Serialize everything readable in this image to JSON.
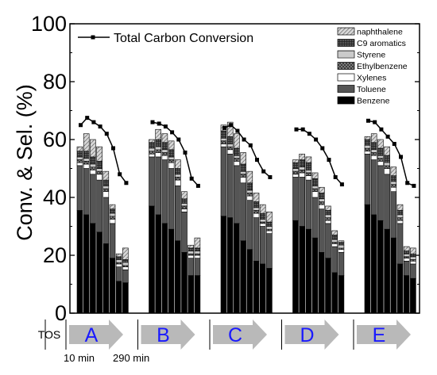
{
  "chart_data": {
    "type": "bar",
    "stacked": true,
    "ylabel": "Conv. & Sel. (%)",
    "ylim": [
      0,
      100
    ],
    "yticks": [
      0,
      20,
      40,
      60,
      80,
      100
    ],
    "catalysts": [
      "A",
      "B",
      "C",
      "D",
      "E"
    ],
    "tos_label": "TOS",
    "tos_start_label": "10 min",
    "tos_end_label": "290 min",
    "bars_per_catalyst": 8,
    "legend_position": "top-right",
    "line_legend": "Total Carbon Conversion",
    "series": [
      {
        "name": "Benzene",
        "key": "benzene",
        "color": "#000000",
        "values": [
          [
            35.5,
            34,
            31,
            28,
            24,
            19,
            11,
            10.5
          ],
          [
            37,
            34,
            31,
            29,
            25,
            21,
            13,
            13
          ],
          [
            33.5,
            33,
            31,
            25,
            22,
            18,
            17,
            15.5
          ],
          [
            32,
            30,
            29,
            26,
            21,
            19,
            14,
            13
          ],
          [
            37.5,
            34,
            32,
            29,
            26,
            17,
            13,
            12
          ]
        ]
      },
      {
        "name": "Toluene",
        "key": "toluene",
        "color": "#555555",
        "values": [
          [
            15.5,
            16,
            17,
            18,
            16,
            12,
            5,
            4.5
          ],
          [
            17,
            20,
            22,
            21,
            19,
            14,
            6,
            6
          ],
          [
            24,
            22,
            20,
            20,
            17,
            15,
            13,
            12
          ],
          [
            15,
            17,
            17,
            14,
            15,
            12,
            9,
            8
          ],
          [
            17.5,
            19,
            19,
            19,
            16,
            14,
            5,
            5
          ]
        ]
      },
      {
        "name": "Xylenes",
        "key": "xylenes",
        "color": "#ffffff",
        "values": [
          [
            1,
            1.5,
            1.5,
            2,
            2,
            1.5,
            1,
            1
          ],
          [
            1,
            1.5,
            1.5,
            2,
            2,
            1,
            1,
            1
          ],
          [
            1,
            1.5,
            1.5,
            2,
            1.5,
            1.5,
            1,
            1
          ],
          [
            1,
            1.5,
            1.5,
            2,
            1.5,
            1,
            1,
            1
          ],
          [
            1,
            1.5,
            1.5,
            2,
            1.5,
            1,
            1,
            1
          ]
        ]
      },
      {
        "name": "Ethylbenzene",
        "key": "ethylbenzene",
        "color": "#6a6a6a",
        "values": [
          [
            1,
            1,
            1,
            1,
            1,
            1,
            0.5,
            0.5
          ],
          [
            1,
            1,
            1,
            1,
            1,
            1,
            0.5,
            0.5
          ],
          [
            1,
            1,
            1,
            1,
            1,
            1,
            0.5,
            0.5
          ],
          [
            1,
            1,
            1,
            1,
            1,
            1,
            0.5,
            0.5
          ],
          [
            1,
            1,
            1,
            1,
            1,
            1,
            0.5,
            0.5
          ]
        ]
      },
      {
        "name": "Styrene",
        "key": "styrene",
        "color": "#ffffff",
        "values": [
          [
            1,
            1,
            1,
            1,
            1,
            1,
            1,
            1
          ],
          [
            1,
            1,
            1,
            1,
            1,
            1,
            1,
            1
          ],
          [
            1,
            1,
            1,
            1,
            1,
            1,
            1,
            1
          ],
          [
            1,
            1,
            1,
            1,
            1,
            1,
            1,
            1
          ],
          [
            1,
            1,
            1,
            1,
            1,
            1,
            1,
            1
          ]
        ]
      },
      {
        "name": "C9 aromatics",
        "key": "c9",
        "color": "#444444",
        "values": [
          [
            2,
            2.5,
            2.5,
            2.5,
            2,
            1.5,
            1,
            1
          ],
          [
            2,
            2.5,
            2.5,
            2.5,
            2,
            1.5,
            1,
            1
          ],
          [
            2.5,
            2.5,
            2.5,
            2.5,
            2.5,
            2,
            2,
            1.5
          ],
          [
            2,
            2.5,
            2.5,
            2.5,
            2,
            1.5,
            1.5,
            1
          ],
          [
            2,
            2.5,
            2.5,
            2.5,
            2,
            1.5,
            1,
            1
          ]
        ]
      },
      {
        "name": "naphthalene",
        "key": "naphthalene",
        "color": "#d0d0d0",
        "values": [
          [
            1.5,
            6,
            6,
            5,
            3,
            1.5,
            1,
            4
          ],
          [
            1,
            3.5,
            3,
            3,
            3,
            2.5,
            1,
            3.5
          ],
          [
            2,
            5,
            5,
            4,
            4,
            3,
            3,
            3.5
          ],
          [
            1,
            2,
            2,
            2,
            2,
            1.5,
            1.5,
            0.5
          ],
          [
            1,
            3,
            3,
            3,
            3,
            2,
            1.5,
            2
          ]
        ]
      }
    ],
    "conversion": [
      [
        65,
        67.5,
        66,
        64.5,
        62,
        57,
        48,
        45
      ],
      [
        66,
        65.5,
        64.5,
        62.5,
        60,
        55.5,
        46.5,
        44
      ],
      [
        64,
        65,
        63,
        60,
        58,
        53,
        49,
        47
      ],
      [
        63.5,
        63.5,
        62,
        60,
        57,
        53,
        47,
        44.5
      ],
      [
        66.5,
        66,
        63.5,
        61,
        58.5,
        54,
        45,
        44
      ]
    ]
  }
}
